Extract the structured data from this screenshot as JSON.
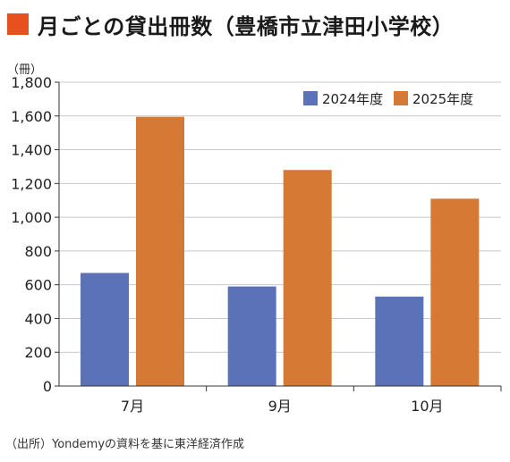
{
  "title": "月ごとの貸出冊数（豊橋市立津田小学校）",
  "source": "（出所）Yondemyの資料を基に東洋経済作成",
  "colors": {
    "title_marker": "#e8501e",
    "series_2024": "#5b72b8",
    "series_2025": "#d67935",
    "gridline": "#c8c8c8",
    "axis": "#333333"
  },
  "chart_data": {
    "type": "bar",
    "title": "月ごとの貸出冊数（豊橋市立津田小学校）",
    "ylabel": "（冊）",
    "xlabel": "",
    "categories": [
      "7月",
      "9月",
      "10月"
    ],
    "series": [
      {
        "name": "2024年度",
        "values": [
          670,
          590,
          530
        ]
      },
      {
        "name": "2025年度",
        "values": [
          1595,
          1280,
          1110
        ]
      }
    ],
    "ylim": [
      0,
      1800
    ],
    "yticks": [
      0,
      200,
      400,
      600,
      800,
      1000,
      1200,
      1400,
      1600,
      1800
    ],
    "ytick_labels": [
      "0",
      "200",
      "400",
      "600",
      "800",
      "1,000",
      "1,200",
      "1,400",
      "1,600",
      "1,800"
    ],
    "grid": true,
    "legend_position": "top-right"
  }
}
